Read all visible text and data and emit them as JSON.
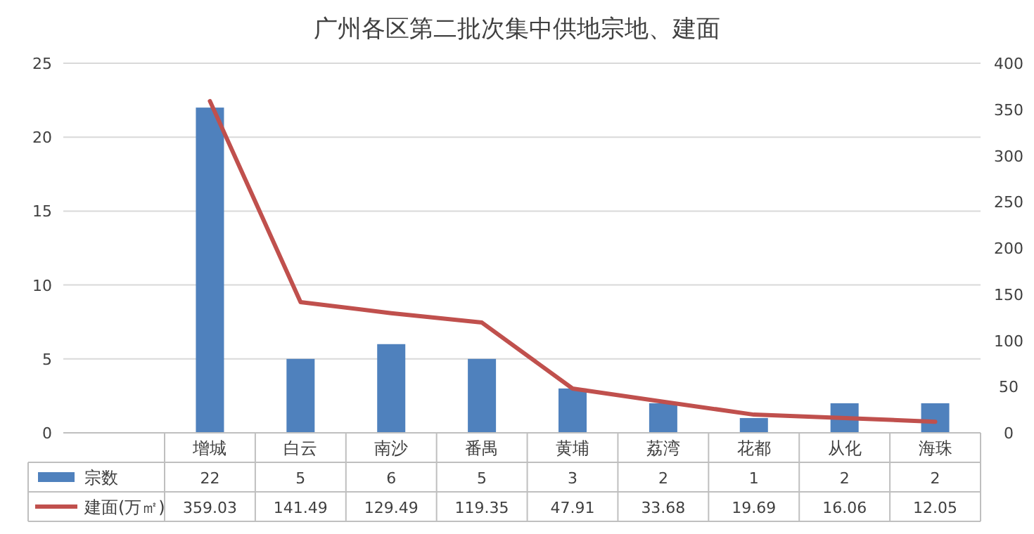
{
  "chart_data": {
    "type": "bar",
    "title": "广州各区第二批次集中供地宗地、建面",
    "categories": [
      "增城",
      "白云",
      "南沙",
      "番禺",
      "黄埔",
      "荔湾",
      "花都",
      "从化",
      "海珠"
    ],
    "series": [
      {
        "name": "宗数",
        "color": "#4f81bd",
        "values": [
          22,
          5,
          6,
          5,
          3,
          2,
          1,
          2,
          2
        ]
      },
      {
        "name": "建面(万㎡)",
        "type": "line",
        "axis": "y2",
        "color": "#c0504d",
        "values": [
          359.03,
          141.49,
          129.49,
          119.35,
          47.91,
          33.68,
          19.69,
          16.06,
          12.05
        ]
      }
    ],
    "ylim": [
      0,
      25
    ],
    "yticks": [
      0,
      5,
      10,
      15,
      20,
      25
    ],
    "y2lim": [
      0,
      400
    ],
    "y2ticks": [
      0,
      50,
      100,
      150,
      200,
      250,
      300,
      350,
      400
    ],
    "grid": "y",
    "legend": "bottom",
    "data_labels": true
  }
}
